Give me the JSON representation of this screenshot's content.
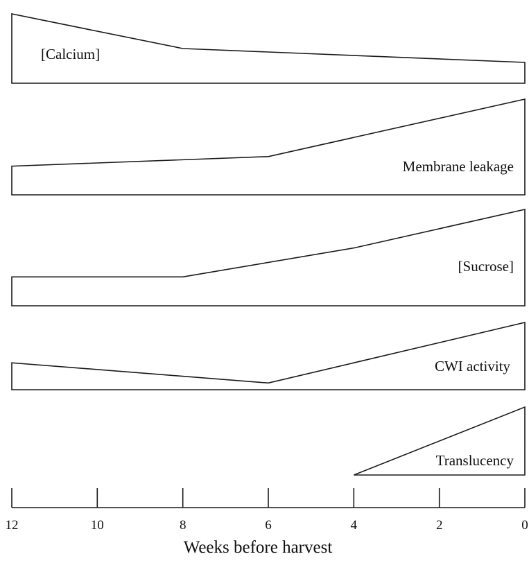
{
  "chart_data": {
    "type": "area",
    "xlabel": "Weeks before harvest",
    "x_ticks": [
      12,
      10,
      8,
      6,
      4,
      2,
      0
    ],
    "xlim": [
      12,
      0
    ],
    "series": [
      {
        "name": "[Calcium]",
        "points": [
          [
            12,
            1.0
          ],
          [
            8,
            0.5
          ],
          [
            0,
            0.3
          ]
        ]
      },
      {
        "name": "Membrane leakage",
        "points": [
          [
            12,
            0.3
          ],
          [
            6,
            0.4
          ],
          [
            0,
            1.0
          ]
        ]
      },
      {
        "name": "[Sucrose]",
        "points": [
          [
            12,
            0.3
          ],
          [
            8,
            0.3
          ],
          [
            4,
            0.6
          ],
          [
            0,
            1.0
          ]
        ]
      },
      {
        "name": "CWI activity",
        "points": [
          [
            12,
            0.4
          ],
          [
            6,
            0.1
          ],
          [
            0,
            1.0
          ]
        ]
      },
      {
        "name": "Translucency",
        "points": [
          [
            4,
            0.0
          ],
          [
            0,
            1.0
          ]
        ]
      }
    ],
    "colors": {
      "stroke": "#1a1a1a",
      "fill": "#ffffff",
      "text": "#111111"
    }
  }
}
